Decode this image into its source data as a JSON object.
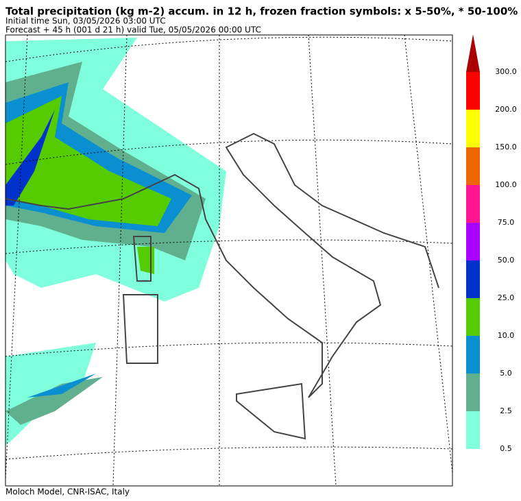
{
  "header": {
    "title": "Total precipitation (kg m-2) accum. in 12 h, frozen fraction symbols: x 5-50%, * 50-100%",
    "initial_time": "Initial time  Sun, 03/05/2026  03:00 UTC",
    "forecast": "Forecast  +  45 h  (001 d 21 h)  valid Tue, 05/05/2026 00:00 UTC"
  },
  "colorbar": {
    "labels": [
      "0.5",
      "2.5",
      "5.0",
      "10.0",
      "25.0",
      "50.0",
      "75.0",
      "100.0",
      "150.0",
      "200.0",
      "300.0"
    ],
    "colors": [
      "#80ffdd",
      "#60b090",
      "#0a90d0",
      "#55cc00",
      "#0033cc",
      "#aa00ff",
      "#ff1493",
      "#ee6600",
      "#ffff00",
      "#ff0000"
    ],
    "extend_color": "#aa0000"
  },
  "footer": "Moloch Model, CNR-ISAC, Italy"
}
